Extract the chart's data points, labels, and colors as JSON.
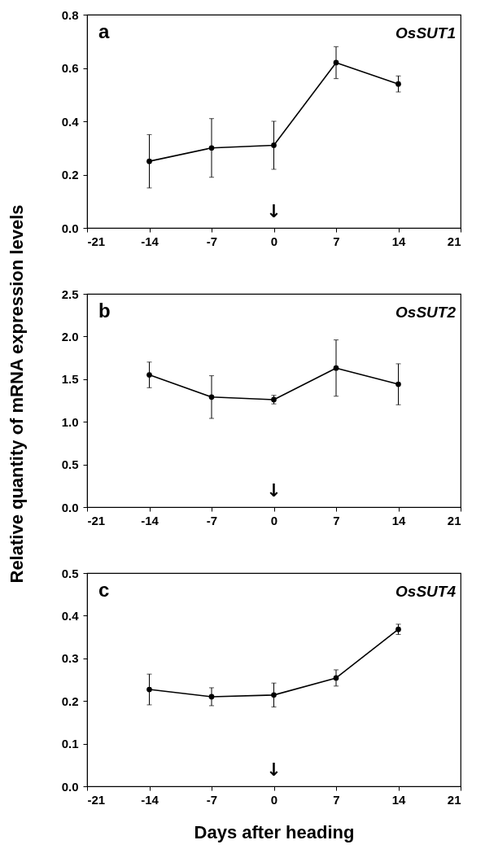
{
  "chart_data": [
    {
      "type": "line",
      "x": [
        -14,
        -7,
        0,
        7,
        14
      ],
      "marker": "circle",
      "line_style": "solid",
      "grid": false,
      "legend": false,
      "series": [
        {
          "color": "#000000",
          "values": [
            0.25,
            0.3,
            0.31,
            0.62,
            0.54
          ],
          "errors": [
            0.1,
            0.11,
            0.09,
            0.06,
            0.03
          ]
        }
      ],
      "xlim": [
        -21,
        21
      ],
      "xticks": [
        -21,
        -14,
        -7,
        0,
        7,
        14,
        21
      ],
      "ylim": [
        0,
        0.8
      ],
      "yticks": [
        {
          "value": 0,
          "label": "0.0"
        },
        {
          "value": 0.2,
          "label": "0.2"
        },
        {
          "value": 0.4,
          "label": "0.4"
        },
        {
          "value": 0.6,
          "label": "0.6"
        },
        {
          "value": 0.8,
          "label": "0.8"
        }
      ],
      "annotations": [
        "a",
        "OsSUT1",
        "↓"
      ]
    },
    {
      "type": "line",
      "x": [
        -14,
        -7,
        0,
        7,
        14
      ],
      "marker": "circle",
      "line_style": "solid",
      "grid": false,
      "legend": false,
      "series": [
        {
          "color": "#000000",
          "values": [
            1.55,
            1.29,
            1.26,
            1.63,
            1.44
          ],
          "errors": [
            0.15,
            0.25,
            0.05,
            0.33,
            0.24
          ]
        }
      ],
      "xlim": [
        -21,
        21
      ],
      "xticks": [
        -21,
        -14,
        -7,
        0,
        7,
        14,
        21
      ],
      "ylim": [
        0,
        2.5
      ],
      "yticks": [
        {
          "value": 0,
          "label": "0.0"
        },
        {
          "value": 0.5,
          "label": "0.5"
        },
        {
          "value": 1,
          "label": "1.0"
        },
        {
          "value": 1.5,
          "label": "1.5"
        },
        {
          "value": 2,
          "label": "2.0"
        },
        {
          "value": 2.5,
          "label": "2.5"
        }
      ],
      "ylabel": "Relative quantity of mRNA expression levels",
      "annotations": [
        "b",
        "OsSUT2",
        "↓"
      ]
    },
    {
      "type": "line",
      "x": [
        -14,
        -7,
        0,
        7,
        14
      ],
      "marker": "circle",
      "line_style": "solid",
      "grid": false,
      "legend": false,
      "series": [
        {
          "color": "#000000",
          "values": [
            0.227,
            0.21,
            0.214,
            0.254,
            0.368
          ],
          "errors": [
            0.036,
            0.021,
            0.028,
            0.019,
            0.012
          ]
        }
      ],
      "xlim": [
        -21,
        21
      ],
      "xticks": [
        -21,
        -14,
        -7,
        0,
        7,
        14,
        21
      ],
      "ylim": [
        0,
        0.5
      ],
      "yticks": [
        {
          "value": 0,
          "label": "0.0"
        },
        {
          "value": 0.1,
          "label": "0.1"
        },
        {
          "value": 0.2,
          "label": "0.2"
        },
        {
          "value": 0.3,
          "label": "0.3"
        },
        {
          "value": 0.4,
          "label": "0.4"
        },
        {
          "value": 0.5,
          "label": "0.5"
        }
      ],
      "xlabel": "Days after heading",
      "annotations": [
        "c",
        "OsSUT4",
        "↓"
      ]
    }
  ]
}
